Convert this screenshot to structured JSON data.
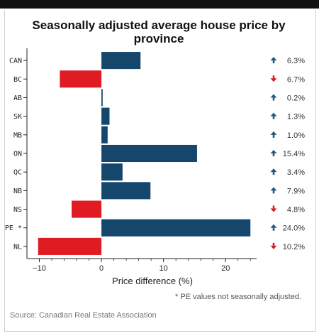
{
  "title": "Seasonally adjusted average house price by province",
  "note": "* PE values not seasonally adjusted.",
  "source": "Source: Canadian Real Estate Association",
  "colors": {
    "positive": "#14476b",
    "negative": "#e01b22",
    "up_arrow": "#1f5a84",
    "down_arrow": "#d91e1e"
  },
  "chart_data": {
    "type": "bar",
    "orientation": "horizontal",
    "categories": [
      "CAN",
      "BC",
      "AB",
      "SK",
      "MB",
      "ON",
      "QC",
      "NB",
      "NS",
      "PE *",
      "NL"
    ],
    "values": [
      6.3,
      -6.7,
      0.2,
      1.3,
      1.0,
      15.4,
      3.4,
      7.9,
      -4.8,
      24.0,
      -10.2
    ],
    "labels": [
      "6.3%",
      "6.7%",
      "0.2%",
      "1.3%",
      "1.0%",
      "15.4%",
      "3.4%",
      "7.9%",
      "4.8%",
      "24.0%",
      "10.2%"
    ],
    "directions": [
      "up",
      "down",
      "up",
      "up",
      "up",
      "up",
      "up",
      "up",
      "down",
      "up",
      "down"
    ],
    "xlabel": "Price difference (%)",
    "ylabel": "",
    "xlim": [
      -12,
      25
    ],
    "xticks": [
      -10,
      0,
      10,
      20
    ],
    "grid": false,
    "legend": "none"
  }
}
